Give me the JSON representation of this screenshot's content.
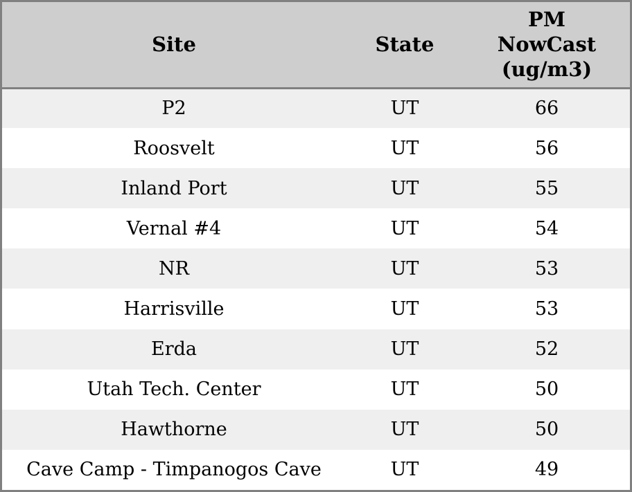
{
  "colors": {
    "header_bg": "#cecece",
    "row_alt_bg": "#efefef",
    "row_bg": "#ffffff",
    "border": "#808080",
    "text": "#000000"
  },
  "table": {
    "headers": {
      "site": "Site",
      "state": "State",
      "pm": "PM\nNowCast\n(ug/m3)"
    },
    "rows": [
      {
        "site": "P2",
        "state": "UT",
        "pm": "66"
      },
      {
        "site": "Roosvelt",
        "state": "UT",
        "pm": "56"
      },
      {
        "site": "Inland Port",
        "state": "UT",
        "pm": "55"
      },
      {
        "site": "Vernal #4",
        "state": "UT",
        "pm": "54"
      },
      {
        "site": "NR",
        "state": "UT",
        "pm": "53"
      },
      {
        "site": "Harrisville",
        "state": "UT",
        "pm": "53"
      },
      {
        "site": "Erda",
        "state": "UT",
        "pm": "52"
      },
      {
        "site": "Utah Tech. Center",
        "state": "UT",
        "pm": "50"
      },
      {
        "site": "Hawthorne",
        "state": "UT",
        "pm": "50"
      },
      {
        "site": "Cave Camp - Timpanogos Cave",
        "state": "UT",
        "pm": "49"
      }
    ]
  },
  "chart_data": {
    "type": "table",
    "title": "",
    "columns": [
      "Site",
      "State",
      "PM NowCast (ug/m3)"
    ],
    "rows": [
      [
        "P2",
        "UT",
        66
      ],
      [
        "Roosvelt",
        "UT",
        56
      ],
      [
        "Inland Port",
        "UT",
        55
      ],
      [
        "Vernal #4",
        "UT",
        54
      ],
      [
        "NR",
        "UT",
        53
      ],
      [
        "Harrisville",
        "UT",
        53
      ],
      [
        "Erda",
        "UT",
        52
      ],
      [
        "Utah Tech. Center",
        "UT",
        50
      ],
      [
        "Hawthorne",
        "UT",
        50
      ],
      [
        "Cave Camp - Timpanogos Cave",
        "UT",
        49
      ]
    ],
    "notes": "Alternating row stripes, gray header band, no internal column borders"
  }
}
